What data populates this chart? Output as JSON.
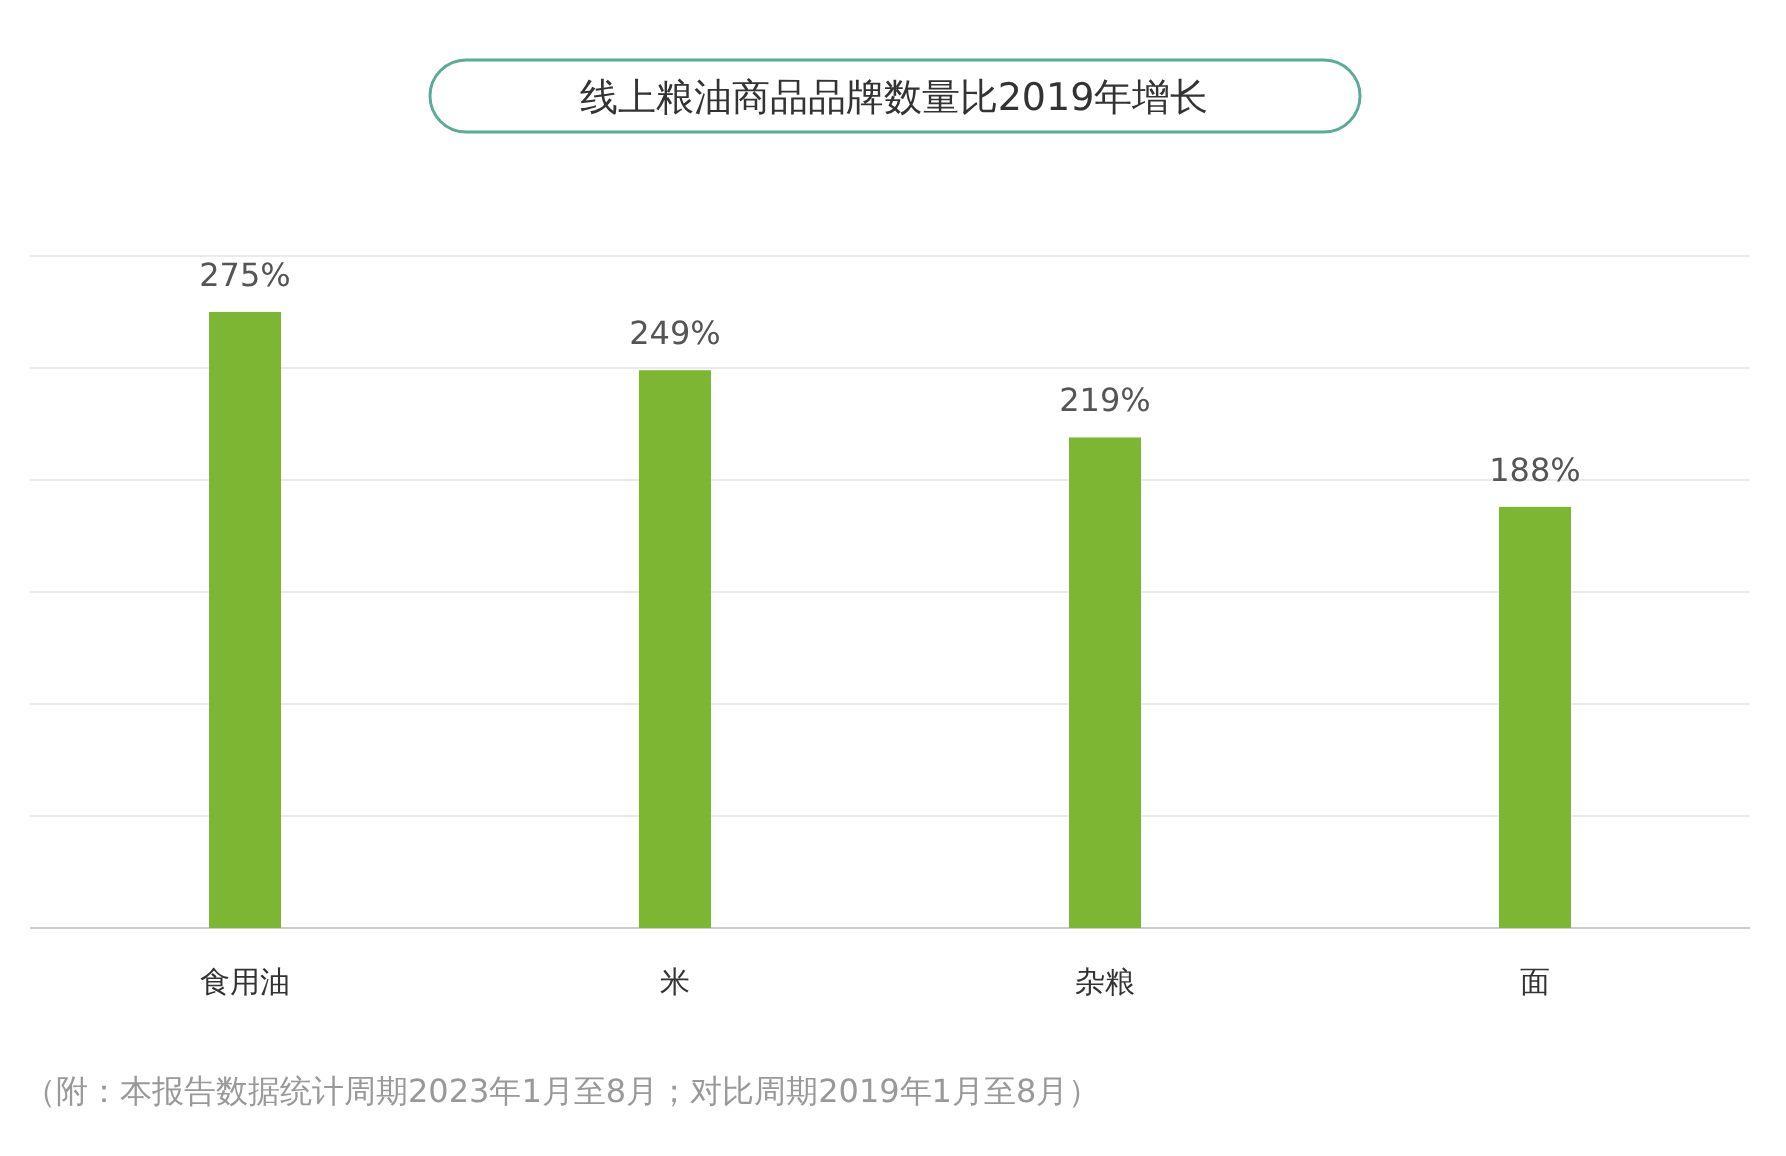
{
  "chart_data": {
    "type": "bar",
    "title": "线上粮油商品品牌数量比2019年增长",
    "categories": [
      "食用油",
      "米",
      "杂粮",
      "面"
    ],
    "values": [
      275,
      249,
      219,
      188
    ],
    "value_labels": [
      "275%",
      "249%",
      "219%",
      "188%"
    ],
    "color": "#7cb632",
    "ylim": [
      0,
      300
    ],
    "yticks": [
      {
        "value": 0,
        "label": null
      },
      {
        "value": 50,
        "label": null
      },
      {
        "value": 100,
        "label": null
      },
      {
        "value": 150,
        "label": null
      },
      {
        "value": 200,
        "label": null
      },
      {
        "value": 250,
        "label": null
      },
      {
        "value": 300,
        "label": null
      }
    ],
    "tick_labels": "x",
    "grid": "y",
    "annotations": [
      "（附：本报告数据统计周期2023年1月至8月；对比周期2019年1月至8月）"
    ]
  }
}
